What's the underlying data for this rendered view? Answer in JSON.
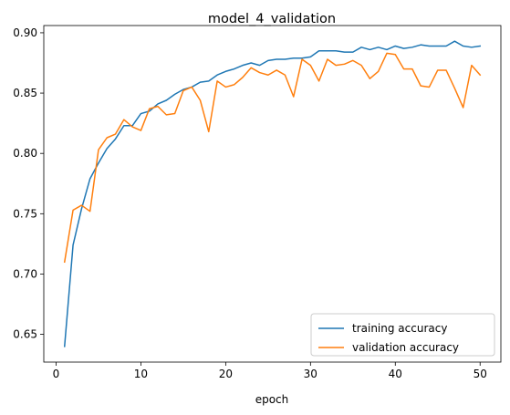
{
  "chart_data": {
    "type": "line",
    "title": "model_4_validation",
    "xlabel": "epoch",
    "ylabel": "",
    "xlim": [
      -1.45,
      52.45
    ],
    "ylim": [
      0.627,
      0.906
    ],
    "xticks": [
      0,
      10,
      20,
      30,
      40,
      50
    ],
    "yticks": [
      0.65,
      0.7,
      0.75,
      0.8,
      0.85,
      0.9
    ],
    "ytick_labels": [
      "0.65",
      "0.70",
      "0.75",
      "0.80",
      "0.85",
      "0.90"
    ],
    "grid": false,
    "legend_position": "lower right",
    "x": [
      1,
      2,
      3,
      4,
      5,
      6,
      7,
      8,
      9,
      10,
      11,
      12,
      13,
      14,
      15,
      16,
      17,
      18,
      19,
      20,
      21,
      22,
      23,
      24,
      25,
      26,
      27,
      28,
      29,
      30,
      31,
      32,
      33,
      34,
      35,
      36,
      37,
      38,
      39,
      40,
      41,
      42,
      43,
      44,
      45,
      46,
      47,
      48,
      49,
      50
    ],
    "series": [
      {
        "name": "training accuracy",
        "color": "#1f77b4",
        "values": [
          0.64,
          0.724,
          0.754,
          0.779,
          0.792,
          0.804,
          0.812,
          0.823,
          0.823,
          0.833,
          0.835,
          0.841,
          0.844,
          0.849,
          0.853,
          0.855,
          0.859,
          0.86,
          0.865,
          0.868,
          0.87,
          0.873,
          0.875,
          0.873,
          0.877,
          0.878,
          0.878,
          0.879,
          0.879,
          0.88,
          0.885,
          0.885,
          0.885,
          0.884,
          0.884,
          0.888,
          0.886,
          0.888,
          0.886,
          0.889,
          0.887,
          0.888,
          0.89,
          0.889,
          0.889,
          0.889,
          0.893,
          0.889,
          0.888,
          0.889
        ]
      },
      {
        "name": "validation accuracy",
        "color": "#ff7f0e",
        "values": [
          0.71,
          0.753,
          0.757,
          0.752,
          0.803,
          0.813,
          0.816,
          0.828,
          0.822,
          0.819,
          0.837,
          0.839,
          0.832,
          0.833,
          0.852,
          0.855,
          0.844,
          0.818,
          0.86,
          0.855,
          0.857,
          0.863,
          0.871,
          0.867,
          0.865,
          0.869,
          0.865,
          0.847,
          0.878,
          0.873,
          0.86,
          0.878,
          0.873,
          0.874,
          0.877,
          0.873,
          0.862,
          0.868,
          0.883,
          0.882,
          0.87,
          0.87,
          0.856,
          0.855,
          0.869,
          0.869,
          0.854,
          0.838,
          0.873,
          0.865
        ]
      }
    ]
  }
}
